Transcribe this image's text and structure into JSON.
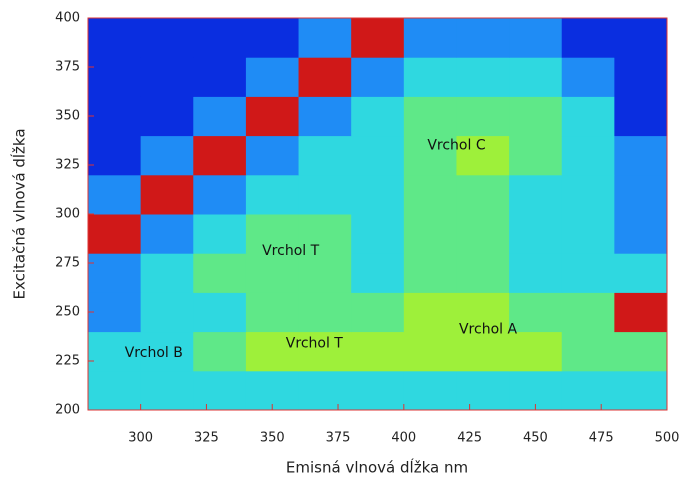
{
  "chart_data": {
    "type": "heatmap",
    "x_label": "Emisná vlnová dĺžka nm",
    "y_label": "Excitačná vlnová dĺžka",
    "x": [
      290,
      310,
      330,
      350,
      370,
      390,
      410,
      430,
      450,
      470,
      490
    ],
    "y": [
      210,
      230,
      250,
      270,
      290,
      310,
      330,
      350,
      370,
      390
    ],
    "z": [
      [
        2,
        2,
        2,
        2,
        2,
        2,
        2,
        2,
        2,
        2,
        2
      ],
      [
        2,
        2,
        3,
        4,
        4,
        4,
        4,
        4,
        4,
        3,
        3
      ],
      [
        1,
        2,
        2,
        3,
        3,
        3,
        4,
        4,
        3,
        3,
        5
      ],
      [
        1,
        2,
        3,
        3,
        3,
        2,
        3,
        3,
        2,
        2,
        2
      ],
      [
        5,
        1,
        2,
        3,
        3,
        2,
        3,
        3,
        2,
        2,
        1
      ],
      [
        1,
        5,
        1,
        2,
        2,
        2,
        3,
        3,
        2,
        2,
        1
      ],
      [
        0,
        1,
        5,
        1,
        2,
        2,
        3,
        4,
        3,
        2,
        1
      ],
      [
        0,
        0,
        1,
        5,
        1,
        2,
        3,
        3,
        3,
        2,
        0
      ],
      [
        0,
        0,
        0,
        1,
        5,
        1,
        2,
        2,
        2,
        1,
        0
      ],
      [
        0,
        0,
        0,
        0,
        1,
        5,
        1,
        1,
        1,
        0,
        0
      ]
    ],
    "colors": [
      "#0a2ee0",
      "#1f8cf5",
      "#2fd8e0",
      "#5fe888",
      "#9ef03a",
      "#d01818"
    ],
    "xlim": [
      280,
      500
    ],
    "ylim": [
      200,
      400
    ],
    "xticks": [
      300,
      325,
      350,
      375,
      400,
      425,
      450,
      475,
      500
    ],
    "yticks": [
      200,
      225,
      250,
      275,
      300,
      325,
      350,
      375,
      400
    ],
    "annotations": [
      {
        "text": "Vrchol C",
        "x": 420,
        "y": 335
      },
      {
        "text": "Vrchol T",
        "x": 357,
        "y": 281
      },
      {
        "text": "Vrchol T",
        "x": 366,
        "y": 234
      },
      {
        "text": "Vrchol A",
        "x": 432,
        "y": 241
      },
      {
        "text": "Vrchol B",
        "x": 305,
        "y": 229
      }
    ]
  }
}
